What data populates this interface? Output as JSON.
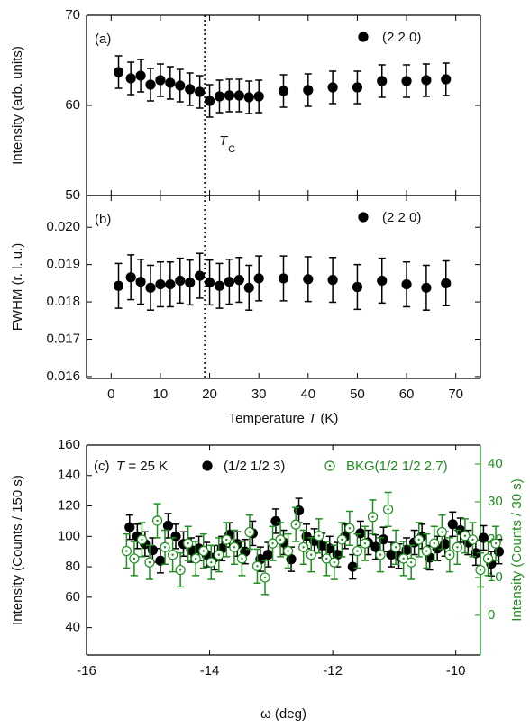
{
  "chart_data": [
    {
      "type": "scatter",
      "panel_label": "(a)",
      "ylabel": "Intensity (arb. units)",
      "legend": "upper right",
      "xlim": [
        -5,
        75
      ],
      "xticks": [
        0,
        10,
        20,
        30,
        40,
        50,
        60,
        70
      ],
      "xtick_labels": false,
      "ylim": [
        50,
        70
      ],
      "yticks": [
        50,
        60,
        70
      ],
      "vline": 19,
      "vline_label": {
        "text": "T",
        "sub": "C"
      },
      "series": [
        {
          "name": "(2 2 0)",
          "color": "#000000",
          "marker": "filled",
          "error": 1.8,
          "x": [
            1.5,
            4,
            6,
            8,
            10,
            12,
            14,
            16,
            18,
            20,
            22,
            24,
            26,
            28,
            30,
            35,
            40,
            45,
            50,
            55,
            60,
            64,
            68
          ],
          "values": [
            63.7,
            63.0,
            63.3,
            62.3,
            62.8,
            62.5,
            62.2,
            61.8,
            61.5,
            60.5,
            61.0,
            61.1,
            61.1,
            60.9,
            61.0,
            61.6,
            61.7,
            62.0,
            62.0,
            62.7,
            62.7,
            62.8,
            62.9
          ]
        }
      ]
    },
    {
      "type": "scatter",
      "panel_label": "(b)",
      "ylabel": "FWHM (r. l. u.)",
      "xlabel": [
        "Temperature ",
        "T",
        " (K)"
      ],
      "legend": "upper right",
      "xlim": [
        -5,
        75
      ],
      "xticks": [
        0,
        10,
        20,
        30,
        40,
        50,
        60,
        70
      ],
      "xtick_labels": true,
      "ylim": [
        0.01595,
        0.02085
      ],
      "yticks": [
        0.016,
        0.017,
        0.018,
        0.019,
        {
          "value": 0.02,
          "label": "0.020"
        }
      ],
      "vline": 19,
      "series": [
        {
          "name": "(2 2 0)",
          "color": "#000000",
          "marker": "filled",
          "error": 0.0006,
          "x": [
            1.5,
            4,
            6,
            8,
            10,
            12,
            14,
            16,
            18,
            20,
            22,
            24,
            26,
            28,
            30,
            35,
            40,
            45,
            50,
            55,
            60,
            64,
            68
          ],
          "values": [
            0.01843,
            0.01866,
            0.01854,
            0.01838,
            0.01847,
            0.01847,
            0.01857,
            0.01852,
            0.0187,
            0.01852,
            0.01843,
            0.01854,
            0.01859,
            0.01838,
            0.01863,
            0.01863,
            0.01861,
            0.01859,
            0.0184,
            0.01857,
            0.01847,
            0.01838,
            0.0185
          ]
        }
      ]
    },
    {
      "type": "scatter",
      "panel_label": "(c)",
      "condition": [
        "T",
        " = 25 K"
      ],
      "ylabel": "Intensity (Counts / 150 s)",
      "y2label": "Intensity (Counts / 30 s)",
      "y2color": "#1f8f1f",
      "xlabel": [
        "ω (deg)"
      ],
      "legend": "top",
      "xlim": [
        -16,
        -9.6
      ],
      "xticks": [
        -16,
        -14,
        -12,
        -10
      ],
      "xtick_labels": true,
      "ylim": [
        22,
        160
      ],
      "yticks": [
        40,
        60,
        80,
        100,
        120,
        140,
        160
      ],
      "y2lim": [
        -10.5,
        45
      ],
      "y2ticks": [
        0,
        10,
        20,
        30,
        40
      ],
      "series": [
        {
          "name": "(1/2 1/2 3)",
          "color": "#000000",
          "marker": "filled",
          "error": 8,
          "x": [
            -15.3,
            -15.175,
            -15.05,
            -14.925,
            -14.8,
            -14.675,
            -14.55,
            -14.425,
            -14.3,
            -14.175,
            -14.05,
            -13.925,
            -13.8,
            -13.675,
            -13.55,
            -13.425,
            -13.3,
            -13.175,
            -13.05,
            -12.925,
            -12.8,
            -12.675,
            -12.55,
            -12.425,
            -12.3,
            -12.175,
            -12.05,
            -11.925,
            -11.8,
            -11.675,
            -11.55,
            -11.425,
            -11.3,
            -11.175,
            -11.05,
            -10.925,
            -10.8,
            -10.675,
            -10.55,
            -10.425,
            -10.3,
            -10.175,
            -10.05,
            -9.925,
            -9.8,
            -9.675,
            -9.55,
            -9.425,
            -9.3
          ],
          "values": [
            106,
            100,
            95,
            91,
            84,
            107,
            100,
            95,
            91,
            92,
            88,
            86,
            92,
            101,
            95,
            90,
            102,
            85,
            88,
            110,
            96,
            85,
            117,
            100,
            97,
            94,
            92,
            88,
            100,
            80,
            102,
            96,
            93,
            98,
            88,
            87,
            91,
            96,
            100,
            86,
            92,
            95,
            108,
            104,
            96,
            89,
            99,
            82,
            90
          ]
        },
        {
          "name": "BKG(1/2 1/2 2.7)",
          "color": "#1f8f1f",
          "marker": "open",
          "axis": "y2",
          "error": 4.5,
          "x": [
            -15.35,
            -15.225,
            -15.1,
            -14.975,
            -14.85,
            -14.725,
            -14.6,
            -14.475,
            -14.35,
            -14.225,
            -14.1,
            -13.975,
            -13.85,
            -13.725,
            -13.6,
            -13.475,
            -13.35,
            -13.225,
            -13.1,
            -12.975,
            -12.85,
            -12.725,
            -12.6,
            -12.475,
            -12.35,
            -12.225,
            -12.1,
            -11.975,
            -11.85,
            -11.725,
            -11.6,
            -11.475,
            -11.35,
            -11.225,
            -11.1,
            -10.975,
            -10.85,
            -10.725,
            -10.6,
            -10.475,
            -10.35,
            -10.225,
            -10.1,
            -9.975,
            -9.85,
            -9.725,
            -9.6,
            -9.475,
            -9.35
          ],
          "values": [
            17,
            15,
            20,
            14,
            25,
            18,
            16,
            12,
            19,
            15,
            17,
            14,
            16,
            20,
            18,
            15,
            22,
            13,
            10,
            19,
            20,
            17,
            24,
            18,
            16,
            21,
            15,
            14,
            20,
            23,
            17,
            19,
            26,
            16,
            28,
            18,
            15,
            14,
            20,
            17,
            19,
            22,
            16,
            18,
            21,
            20,
            12,
            15,
            19
          ]
        }
      ]
    }
  ]
}
